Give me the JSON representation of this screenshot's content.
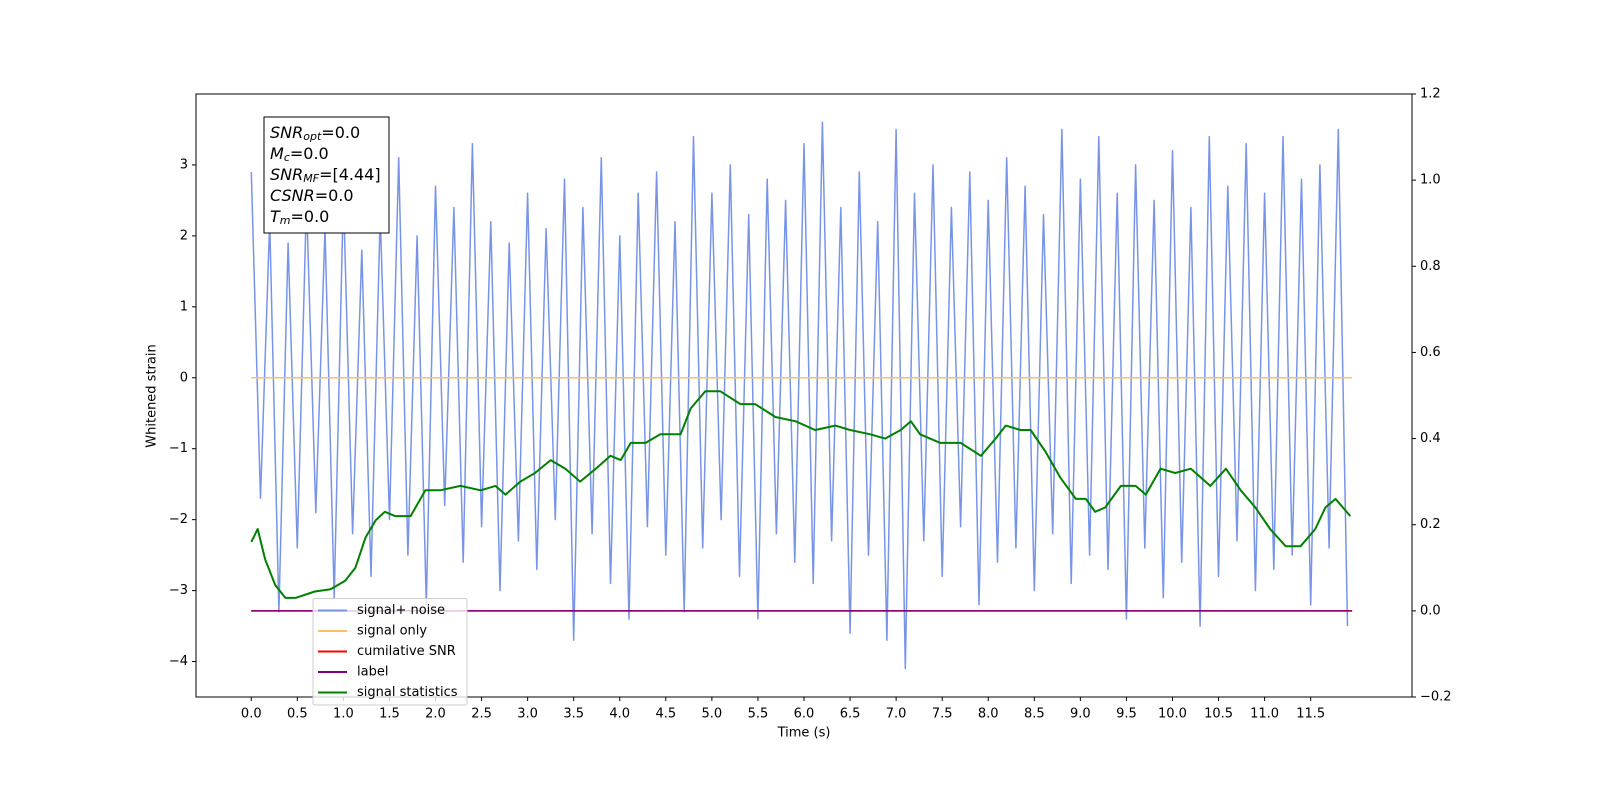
{
  "chart_data": {
    "type": "line",
    "xlabel": "Time (s)",
    "ylabel": "Whitened strain",
    "xlim": [
      -0.6,
      12.6
    ],
    "ylim": [
      -4.5,
      4.0
    ],
    "y2lim": [
      -0.2,
      1.2
    ],
    "xticks": [
      {
        "value": 0,
        "label": "0.0"
      },
      0.5,
      {
        "value": 1,
        "label": "1.0"
      },
      1.5,
      {
        "value": 2,
        "label": "2.0"
      },
      2.5,
      {
        "value": 3,
        "label": "3.0"
      },
      3.5,
      {
        "value": 4,
        "label": "4.0"
      },
      4.5,
      {
        "value": 5,
        "label": "5.0"
      },
      5.5,
      {
        "value": 6,
        "label": "6.0"
      },
      6.5,
      {
        "value": 7,
        "label": "7.0"
      },
      7.5,
      {
        "value": 8,
        "label": "8.0"
      },
      8.5,
      {
        "value": 9,
        "label": "9.0"
      },
      9.5,
      {
        "value": 10,
        "label": "10.0"
      },
      10.5,
      {
        "value": 11,
        "label": "11.0"
      },
      11.5
    ],
    "yticks": [
      {
        "value": -4,
        "label": "−4"
      },
      {
        "value": -3,
        "label": "−3"
      },
      {
        "value": -2,
        "label": "−2"
      },
      {
        "value": -1,
        "label": "−1"
      },
      0,
      1,
      2,
      3
    ],
    "y2ticks": [
      {
        "value": -0.2,
        "label": "−0.2"
      },
      {
        "value": 0,
        "label": "0.0"
      },
      0.2,
      0.4,
      0.6,
      0.8,
      {
        "value": 1,
        "label": "1.0"
      },
      1.2
    ],
    "legend": "lower left",
    "annotation": [
      {
        "text": "SNR",
        "sub": "opt",
        "value": "=0.0"
      },
      {
        "text": "M",
        "sub": "c",
        "value": "=0.0"
      },
      {
        "text": "SNR",
        "sub": "MF",
        "value": "=[4.44]"
      },
      {
        "text": "CSNR",
        "value": "=0.0"
      },
      {
        "text": "T",
        "sub": "m",
        "value": "=0.0"
      }
    ],
    "series": [
      {
        "name": "signal+ noise",
        "color": "#7894e8",
        "x": [
          0,
          0.1,
          0.2,
          0.3,
          0.4,
          0.5,
          0.6,
          0.7,
          0.8,
          0.9,
          1,
          1.1,
          1.2,
          1.3,
          1.4,
          1.5,
          1.6,
          1.7,
          1.8,
          1.9,
          2,
          2.1,
          2.2,
          2.3,
          2.4,
          2.5,
          2.6,
          2.7,
          2.8,
          2.9,
          3,
          3.1,
          3.2,
          3.3,
          3.4,
          3.5,
          3.6,
          3.7,
          3.8,
          3.9,
          4,
          4.1,
          4.2,
          4.3,
          4.4,
          4.5,
          4.6,
          4.7,
          4.8,
          4.9,
          5,
          5.1,
          5.2,
          5.3,
          5.4,
          5.5,
          5.6,
          5.7,
          5.8,
          5.9,
          6,
          6.1,
          6.2,
          6.3,
          6.4,
          6.5,
          6.6,
          6.7,
          6.8,
          6.9,
          7,
          7.1,
          7.2,
          7.3,
          7.4,
          7.5,
          7.6,
          7.7,
          7.8,
          7.9,
          8,
          8.1,
          8.2,
          8.3,
          8.4,
          8.5,
          8.6,
          8.7,
          8.8,
          8.9,
          9,
          9.1,
          9.2,
          9.3,
          9.4,
          9.5,
          9.6,
          9.7,
          9.8,
          9.9,
          10,
          10.1,
          10.2,
          10.3,
          10.4,
          10.5,
          10.6,
          10.7,
          10.8,
          10.9,
          11,
          11.1,
          11.2,
          11.3,
          11.4,
          11.5,
          11.6,
          11.7,
          11.8,
          11.9
        ],
        "values": [
          2.9,
          -1.7,
          2.2,
          -3.3,
          1.9,
          -2.4,
          2.5,
          -1.9,
          2.1,
          -3.1,
          2.6,
          -2.2,
          1.8,
          -2.8,
          2.3,
          -2.0,
          3.1,
          -2.5,
          2.0,
          -3.2,
          2.7,
          -1.8,
          2.4,
          -2.6,
          3.3,
          -2.1,
          2.2,
          -3.0,
          1.9,
          -2.3,
          2.6,
          -2.7,
          2.1,
          -2.0,
          2.8,
          -3.7,
          2.4,
          -2.2,
          3.1,
          -2.9,
          2.0,
          -3.4,
          2.6,
          -2.1,
          2.9,
          -2.5,
          2.2,
          -3.3,
          3.4,
          -2.4,
          2.6,
          -2.0,
          3.0,
          -2.8,
          2.3,
          -3.4,
          2.8,
          -2.2,
          2.5,
          -2.6,
          3.3,
          -2.9,
          3.6,
          -2.3,
          2.4,
          -3.6,
          2.9,
          -2.5,
          2.2,
          -3.7,
          3.5,
          -4.1,
          2.6,
          -2.3,
          3.0,
          -2.8,
          2.4,
          -2.1,
          2.9,
          -3.2,
          2.5,
          -2.6,
          3.1,
          -2.4,
          2.7,
          -3.0,
          2.3,
          -2.2,
          3.5,
          -2.9,
          2.8,
          -2.5,
          3.4,
          -2.7,
          2.6,
          -3.4,
          3.0,
          -2.4,
          2.5,
          -3.1,
          3.2,
          -2.6,
          2.4,
          -3.5,
          3.4,
          -2.8,
          2.7,
          -2.3,
          3.3,
          -3.0,
          2.6,
          -2.7,
          3.4,
          -2.5,
          2.8,
          -3.2,
          3.0,
          -2.4,
          3.5,
          -3.5
        ]
      },
      {
        "name": "signal only",
        "color": "#ffbf66",
        "x": [
          0,
          11.95
        ],
        "values": [
          0,
          0
        ]
      },
      {
        "name": "cumilative SNR",
        "color": "#ff0000",
        "axis": "y2",
        "x": [
          0,
          11.95
        ],
        "values": [
          0,
          0
        ]
      },
      {
        "name": "label",
        "color": "#800080",
        "axis": "y2",
        "x": [
          0,
          11.95
        ],
        "values": [
          0,
          0
        ]
      },
      {
        "name": "signal statistics",
        "color": "#008000",
        "axis": "y2",
        "x": [
          0,
          0.07,
          0.15,
          0.26,
          0.37,
          0.48,
          0.69,
          0.86,
          1.02,
          1.13,
          1.24,
          1.35,
          1.45,
          1.56,
          1.73,
          1.89,
          2.05,
          2.27,
          2.49,
          2.65,
          2.76,
          2.92,
          3.08,
          3.25,
          3.41,
          3.57,
          3.74,
          3.9,
          4.01,
          4.12,
          4.28,
          4.44,
          4.66,
          4.77,
          4.93,
          5.09,
          5.31,
          5.47,
          5.69,
          5.91,
          6.12,
          6.34,
          6.5,
          6.72,
          6.88,
          7.05,
          7.16,
          7.26,
          7.48,
          7.7,
          7.92,
          8.08,
          8.19,
          8.35,
          8.46,
          8.62,
          8.78,
          8.95,
          9.06,
          9.16,
          9.27,
          9.44,
          9.6,
          9.71,
          9.87,
          10.03,
          10.2,
          10.41,
          10.58,
          10.74,
          10.9,
          11.06,
          11.23,
          11.39,
          11.55,
          11.66,
          11.77,
          11.93
        ],
        "values": [
          0.16,
          0.19,
          0.12,
          0.06,
          0.03,
          0.03,
          0.045,
          0.05,
          0.07,
          0.1,
          0.17,
          0.21,
          0.23,
          0.22,
          0.22,
          0.28,
          0.28,
          0.29,
          0.28,
          0.29,
          0.27,
          0.3,
          0.32,
          0.35,
          0.33,
          0.3,
          0.33,
          0.36,
          0.35,
          0.39,
          0.39,
          0.41,
          0.41,
          0.47,
          0.51,
          0.51,
          0.48,
          0.48,
          0.45,
          0.44,
          0.42,
          0.43,
          0.42,
          0.41,
          0.4,
          0.42,
          0.44,
          0.41,
          0.39,
          0.39,
          0.36,
          0.4,
          0.43,
          0.42,
          0.42,
          0.37,
          0.31,
          0.26,
          0.26,
          0.23,
          0.24,
          0.29,
          0.29,
          0.27,
          0.33,
          0.32,
          0.33,
          0.29,
          0.33,
          0.28,
          0.24,
          0.19,
          0.15,
          0.15,
          0.19,
          0.24,
          0.26,
          0.22
        ]
      }
    ]
  }
}
